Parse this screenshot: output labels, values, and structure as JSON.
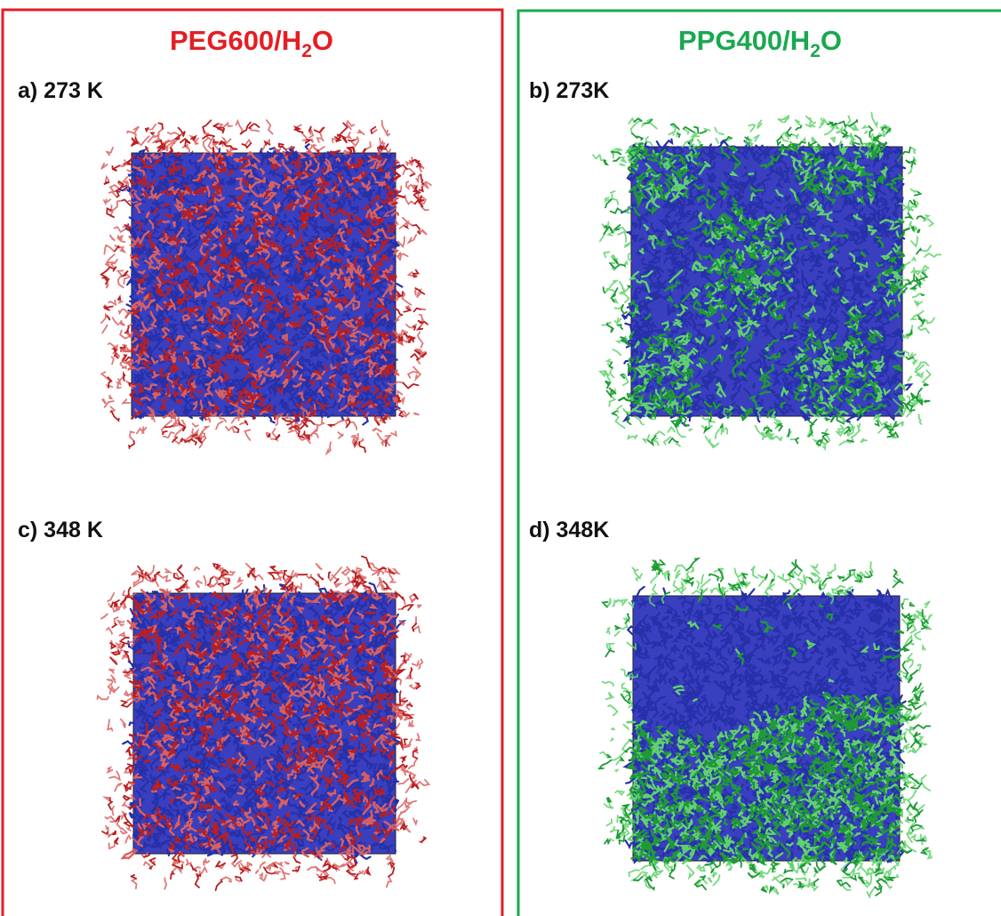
{
  "panels": [
    {
      "title": {
        "main": "PEG600/H",
        "sub": "2",
        "tail": "O"
      },
      "snapshots": [
        {
          "label": "a) 273 K"
        },
        {
          "label": "c) 348 K"
        }
      ]
    },
    {
      "title": {
        "main": "PPG400/H",
        "sub": "2",
        "tail": "O"
      },
      "snapshots": [
        {
          "label": "b) 273K"
        },
        {
          "label": "d) 348K"
        }
      ]
    }
  ]
}
